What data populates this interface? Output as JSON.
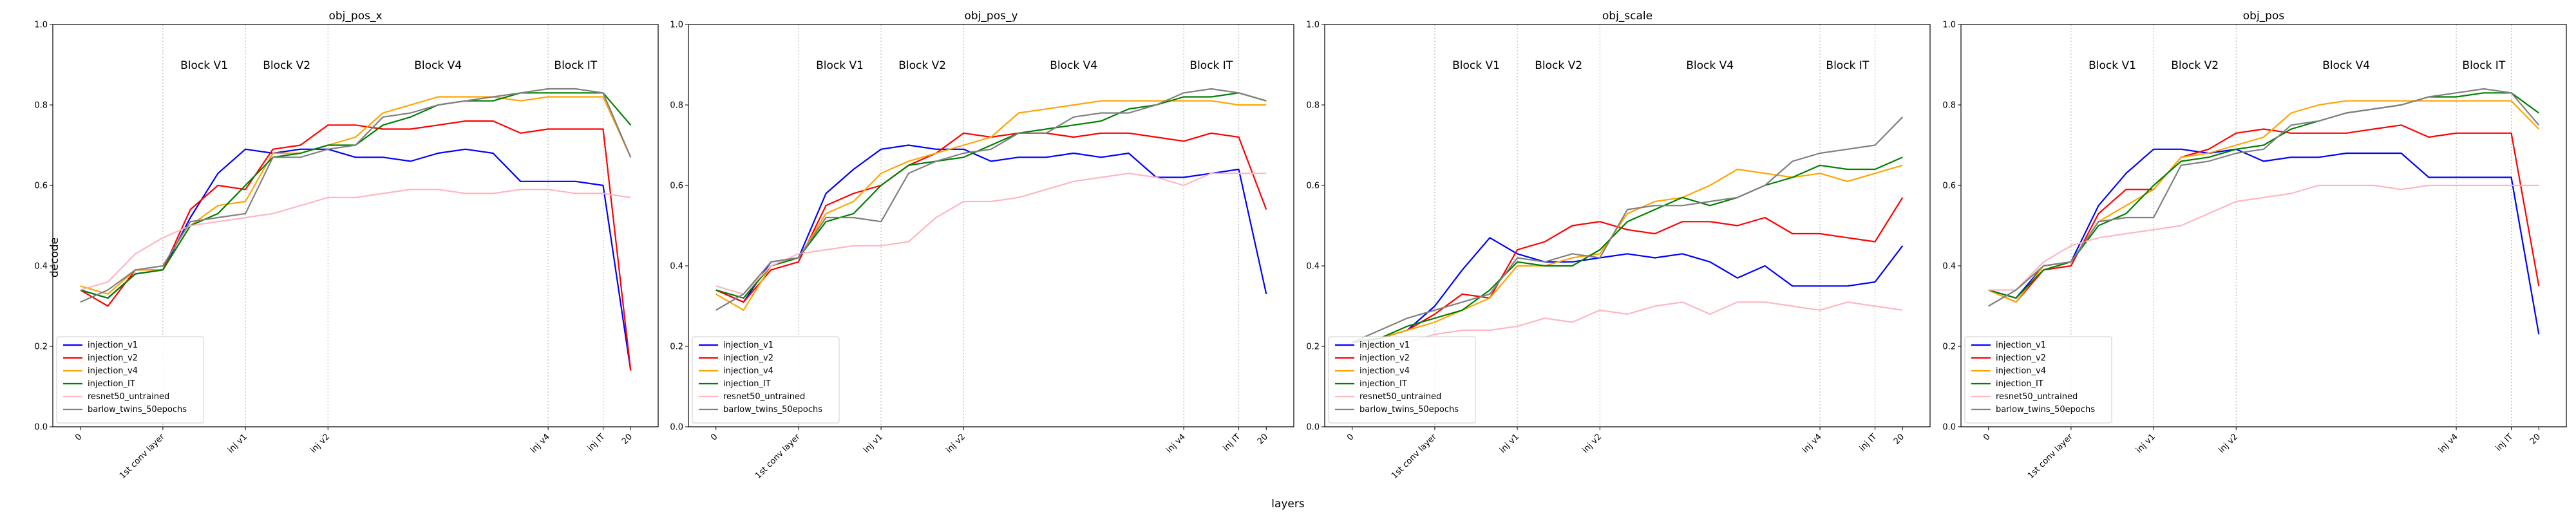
{
  "figure": {
    "xlabel": "layers",
    "ylabel": "decode"
  },
  "chart_data": [
    {
      "type": "line",
      "title": "obj_pos_x",
      "x": [
        0,
        1,
        2,
        3,
        4,
        5,
        6,
        7,
        8,
        9,
        10,
        11,
        12,
        13,
        14,
        15,
        16,
        17,
        18,
        19,
        20
      ],
      "xtick_positions": [
        0,
        3,
        6,
        9,
        17,
        19,
        20
      ],
      "xtick_labels": [
        "0",
        "1st conv layer",
        "inj v1",
        "inj v2",
        "inj v4",
        "inj IT",
        "20"
      ],
      "block_lines": [
        3,
        6,
        9,
        17,
        19
      ],
      "block_labels": [
        {
          "text": "Block V1",
          "x": 4.5
        },
        {
          "text": "Block V2",
          "x": 7.5
        },
        {
          "text": "Block V4",
          "x": 13
        },
        {
          "text": "Block IT",
          "x": 18
        }
      ],
      "ylim": [
        0,
        1
      ],
      "yticks": [
        0.0,
        0.2,
        0.4,
        0.6,
        0.8,
        1.0
      ],
      "legend_position": "bottom-left",
      "series": [
        {
          "name": "injection_v1",
          "color": "#0000ff",
          "values": [
            0.34,
            0.32,
            0.38,
            0.39,
            0.52,
            0.63,
            0.69,
            0.68,
            0.69,
            0.69,
            0.67,
            0.67,
            0.66,
            0.68,
            0.69,
            0.68,
            0.61,
            0.61,
            0.61,
            0.6,
            0.14
          ]
        },
        {
          "name": "injection_v2",
          "color": "#ff0000",
          "values": [
            0.34,
            0.3,
            0.39,
            0.39,
            0.54,
            0.6,
            0.59,
            0.69,
            0.7,
            0.75,
            0.75,
            0.74,
            0.74,
            0.75,
            0.76,
            0.76,
            0.73,
            0.74,
            0.74,
            0.74,
            0.14
          ]
        },
        {
          "name": "injection_v4",
          "color": "#ffa500",
          "values": [
            0.35,
            0.33,
            0.39,
            0.39,
            0.5,
            0.55,
            0.56,
            0.68,
            0.68,
            0.7,
            0.72,
            0.78,
            0.8,
            0.82,
            0.82,
            0.82,
            0.81,
            0.82,
            0.82,
            0.82,
            0.67
          ]
        },
        {
          "name": "injection_IT",
          "color": "#008000",
          "values": [
            0.34,
            0.32,
            0.38,
            0.39,
            0.5,
            0.53,
            0.6,
            0.67,
            0.68,
            0.7,
            0.7,
            0.75,
            0.77,
            0.8,
            0.81,
            0.81,
            0.83,
            0.83,
            0.83,
            0.83,
            0.75
          ]
        },
        {
          "name": "resnet50_untrained",
          "color": "#ffb6c1",
          "values": [
            0.34,
            0.36,
            0.43,
            0.47,
            0.5,
            0.51,
            0.52,
            0.53,
            0.55,
            0.57,
            0.57,
            0.58,
            0.59,
            0.59,
            0.58,
            0.58,
            0.59,
            0.59,
            0.58,
            0.58,
            0.57
          ]
        },
        {
          "name": "barlow_twins_50epochs",
          "color": "#808080",
          "values": [
            0.31,
            0.34,
            0.39,
            0.4,
            0.51,
            0.52,
            0.53,
            0.67,
            0.67,
            0.69,
            0.7,
            0.77,
            0.78,
            0.8,
            0.81,
            0.82,
            0.83,
            0.84,
            0.84,
            0.83,
            0.67
          ]
        }
      ]
    },
    {
      "type": "line",
      "title": "obj_pos_y",
      "x": [
        0,
        1,
        2,
        3,
        4,
        5,
        6,
        7,
        8,
        9,
        10,
        11,
        12,
        13,
        14,
        15,
        16,
        17,
        18,
        19,
        20
      ],
      "xtick_positions": [
        0,
        3,
        6,
        9,
        17,
        19,
        20
      ],
      "xtick_labels": [
        "0",
        "1st conv layer",
        "inj v1",
        "inj v2",
        "inj v4",
        "inj IT",
        "20"
      ],
      "block_lines": [
        3,
        6,
        9,
        17,
        19
      ],
      "block_labels": [
        {
          "text": "Block V1",
          "x": 4.5
        },
        {
          "text": "Block V2",
          "x": 7.5
        },
        {
          "text": "Block V4",
          "x": 13
        },
        {
          "text": "Block IT",
          "x": 18
        }
      ],
      "ylim": [
        0,
        1
      ],
      "yticks": [
        0.0,
        0.2,
        0.4,
        0.6,
        0.8,
        1.0
      ],
      "legend_position": "bottom-left",
      "series": [
        {
          "name": "injection_v1",
          "color": "#0000ff",
          "values": [
            0.34,
            0.31,
            0.41,
            0.42,
            0.58,
            0.64,
            0.69,
            0.7,
            0.69,
            0.69,
            0.66,
            0.67,
            0.67,
            0.68,
            0.67,
            0.68,
            0.62,
            0.62,
            0.63,
            0.64,
            0.33
          ]
        },
        {
          "name": "injection_v2",
          "color": "#ff0000",
          "values": [
            0.34,
            0.31,
            0.39,
            0.41,
            0.55,
            0.58,
            0.6,
            0.65,
            0.68,
            0.73,
            0.72,
            0.73,
            0.73,
            0.72,
            0.73,
            0.73,
            0.72,
            0.71,
            0.73,
            0.72,
            0.54
          ]
        },
        {
          "name": "injection_v4",
          "color": "#ffa500",
          "values": [
            0.33,
            0.29,
            0.4,
            0.42,
            0.53,
            0.56,
            0.63,
            0.66,
            0.68,
            0.7,
            0.72,
            0.78,
            0.79,
            0.8,
            0.81,
            0.81,
            0.81,
            0.81,
            0.81,
            0.8,
            0.8
          ]
        },
        {
          "name": "injection_IT",
          "color": "#008000",
          "values": [
            0.34,
            0.32,
            0.4,
            0.42,
            0.51,
            0.53,
            0.6,
            0.65,
            0.66,
            0.67,
            0.7,
            0.73,
            0.74,
            0.75,
            0.76,
            0.79,
            0.8,
            0.82,
            0.82,
            0.83,
            0.81
          ]
        },
        {
          "name": "resnet50_untrained",
          "color": "#ffb6c1",
          "values": [
            0.35,
            0.33,
            0.4,
            0.43,
            0.44,
            0.45,
            0.45,
            0.46,
            0.52,
            0.56,
            0.56,
            0.57,
            0.59,
            0.61,
            0.62,
            0.63,
            0.62,
            0.6,
            0.63,
            0.63,
            0.63
          ]
        },
        {
          "name": "barlow_twins_50epochs",
          "color": "#808080",
          "values": [
            0.29,
            0.33,
            0.41,
            0.42,
            0.52,
            0.52,
            0.51,
            0.63,
            0.66,
            0.68,
            0.69,
            0.73,
            0.73,
            0.77,
            0.78,
            0.78,
            0.8,
            0.83,
            0.84,
            0.83,
            0.81
          ]
        }
      ]
    },
    {
      "type": "line",
      "title": "obj_scale",
      "x": [
        0,
        1,
        2,
        3,
        4,
        5,
        6,
        7,
        8,
        9,
        10,
        11,
        12,
        13,
        14,
        15,
        16,
        17,
        18,
        19,
        20
      ],
      "xtick_positions": [
        0,
        3,
        6,
        9,
        17,
        19,
        20
      ],
      "xtick_labels": [
        "0",
        "1st conv layer",
        "inj v1",
        "inj v2",
        "inj v4",
        "inj IT",
        "20"
      ],
      "block_lines": [
        3,
        6,
        9,
        17,
        19
      ],
      "block_labels": [
        {
          "text": "Block V1",
          "x": 4.5
        },
        {
          "text": "Block V2",
          "x": 7.5
        },
        {
          "text": "Block V4",
          "x": 13
        },
        {
          "text": "Block IT",
          "x": 18
        }
      ],
      "ylim": [
        0,
        1
      ],
      "yticks": [
        0.0,
        0.2,
        0.4,
        0.6,
        0.8,
        1.0
      ],
      "legend_position": "bottom-left",
      "series": [
        {
          "name": "injection_v1",
          "color": "#0000ff",
          "values": [
            0.21,
            0.22,
            0.24,
            0.3,
            0.39,
            0.47,
            0.43,
            0.41,
            0.41,
            0.42,
            0.43,
            0.42,
            0.43,
            0.41,
            0.37,
            0.4,
            0.35,
            0.35,
            0.35,
            0.36,
            0.45
          ]
        },
        {
          "name": "injection_v2",
          "color": "#ff0000",
          "values": [
            0.21,
            0.22,
            0.24,
            0.28,
            0.33,
            0.32,
            0.44,
            0.46,
            0.5,
            0.51,
            0.49,
            0.48,
            0.51,
            0.51,
            0.5,
            0.52,
            0.48,
            0.48,
            0.47,
            0.46,
            0.57
          ]
        },
        {
          "name": "injection_v4",
          "color": "#ffa500",
          "values": [
            0.21,
            0.22,
            0.24,
            0.26,
            0.29,
            0.32,
            0.4,
            0.4,
            0.42,
            0.43,
            0.53,
            0.56,
            0.57,
            0.6,
            0.64,
            0.63,
            0.62,
            0.63,
            0.61,
            0.63,
            0.65
          ]
        },
        {
          "name": "injection_IT",
          "color": "#008000",
          "values": [
            0.21,
            0.22,
            0.25,
            0.27,
            0.29,
            0.34,
            0.41,
            0.4,
            0.4,
            0.44,
            0.51,
            0.54,
            0.57,
            0.55,
            0.57,
            0.6,
            0.62,
            0.65,
            0.64,
            0.64,
            0.67
          ]
        },
        {
          "name": "resnet50_untrained",
          "color": "#ffb6c1",
          "values": [
            0.18,
            0.2,
            0.21,
            0.23,
            0.24,
            0.24,
            0.25,
            0.27,
            0.26,
            0.29,
            0.28,
            0.3,
            0.31,
            0.28,
            0.31,
            0.31,
            0.3,
            0.29,
            0.31,
            0.3,
            0.29
          ]
        },
        {
          "name": "barlow_twins_50epochs",
          "color": "#808080",
          "values": [
            0.21,
            0.24,
            0.27,
            0.29,
            0.31,
            0.33,
            0.42,
            0.41,
            0.43,
            0.42,
            0.54,
            0.55,
            0.55,
            0.56,
            0.57,
            0.6,
            0.66,
            0.68,
            0.69,
            0.7,
            0.77
          ]
        }
      ]
    },
    {
      "type": "line",
      "title": "obj_pos",
      "x": [
        0,
        1,
        2,
        3,
        4,
        5,
        6,
        7,
        8,
        9,
        10,
        11,
        12,
        13,
        14,
        15,
        16,
        17,
        18,
        19,
        20
      ],
      "xtick_positions": [
        0,
        3,
        6,
        9,
        17,
        19,
        20
      ],
      "xtick_labels": [
        "0",
        "1st conv layer",
        "inj v1",
        "inj v2",
        "inj v4",
        "inj IT",
        "20"
      ],
      "block_lines": [
        3,
        6,
        9,
        17,
        19
      ],
      "block_labels": [
        {
          "text": "Block V1",
          "x": 4.5
        },
        {
          "text": "Block V2",
          "x": 7.5
        },
        {
          "text": "Block V4",
          "x": 13
        },
        {
          "text": "Block IT",
          "x": 18
        }
      ],
      "ylim": [
        0,
        1
      ],
      "yticks": [
        0.0,
        0.2,
        0.4,
        0.6,
        0.8,
        1.0
      ],
      "legend_position": "bottom-left",
      "series": [
        {
          "name": "injection_v1",
          "color": "#0000ff",
          "values": [
            0.34,
            0.32,
            0.4,
            0.41,
            0.55,
            0.63,
            0.69,
            0.69,
            0.68,
            0.69,
            0.66,
            0.67,
            0.67,
            0.68,
            0.68,
            0.68,
            0.62,
            0.62,
            0.62,
            0.62,
            0.23
          ]
        },
        {
          "name": "injection_v2",
          "color": "#ff0000",
          "values": [
            0.34,
            0.31,
            0.39,
            0.4,
            0.53,
            0.59,
            0.59,
            0.67,
            0.69,
            0.73,
            0.74,
            0.73,
            0.73,
            0.73,
            0.74,
            0.75,
            0.72,
            0.73,
            0.73,
            0.73,
            0.35
          ]
        },
        {
          "name": "injection_v4",
          "color": "#ffa500",
          "values": [
            0.34,
            0.31,
            0.4,
            0.41,
            0.51,
            0.55,
            0.59,
            0.67,
            0.68,
            0.7,
            0.72,
            0.78,
            0.8,
            0.81,
            0.81,
            0.81,
            0.81,
            0.81,
            0.81,
            0.81,
            0.74
          ]
        },
        {
          "name": "injection_IT",
          "color": "#008000",
          "values": [
            0.34,
            0.32,
            0.39,
            0.41,
            0.5,
            0.53,
            0.6,
            0.66,
            0.67,
            0.69,
            0.7,
            0.74,
            0.76,
            0.78,
            0.79,
            0.8,
            0.82,
            0.82,
            0.83,
            0.83,
            0.78
          ]
        },
        {
          "name": "resnet50_untrained",
          "color": "#ffb6c1",
          "values": [
            0.34,
            0.34,
            0.41,
            0.45,
            0.47,
            0.48,
            0.49,
            0.5,
            0.53,
            0.56,
            0.57,
            0.58,
            0.6,
            0.6,
            0.6,
            0.59,
            0.6,
            0.6,
            0.6,
            0.6,
            0.6
          ]
        },
        {
          "name": "barlow_twins_50epochs",
          "color": "#808080",
          "values": [
            0.3,
            0.34,
            0.4,
            0.41,
            0.51,
            0.52,
            0.52,
            0.65,
            0.66,
            0.68,
            0.69,
            0.75,
            0.76,
            0.78,
            0.79,
            0.8,
            0.82,
            0.83,
            0.84,
            0.83,
            0.75
          ]
        }
      ]
    }
  ]
}
